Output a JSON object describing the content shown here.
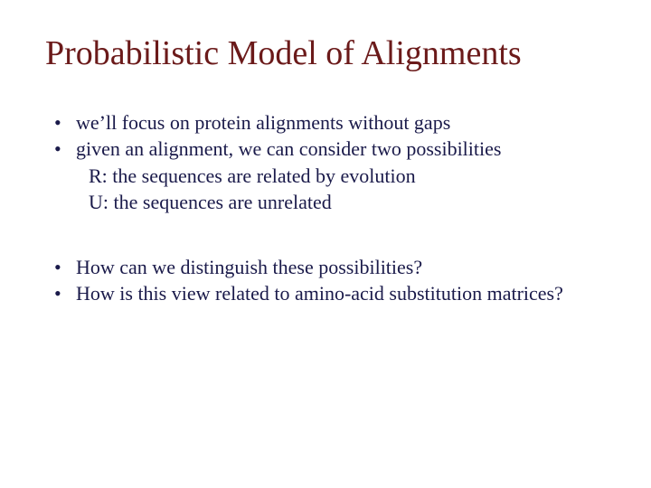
{
  "slide": {
    "title": "Probabilistic Model of Alignments",
    "title_color": "#6b1a1a",
    "body_color": "#1a1a4a",
    "title_fontsize": 38,
    "body_fontsize": 22,
    "background_color": "#ffffff",
    "group1": {
      "bullet1": "we’ll focus on protein alignments without gaps",
      "bullet2": "given an alignment, we can consider two possibilities",
      "sub1": "R: the sequences are related by evolution",
      "sub2": "U: the sequences are unrelated"
    },
    "group2": {
      "bullet1": "How can we distinguish these possibilities?",
      "bullet2": "How is this view related to amino-acid substitution matrices?"
    }
  }
}
